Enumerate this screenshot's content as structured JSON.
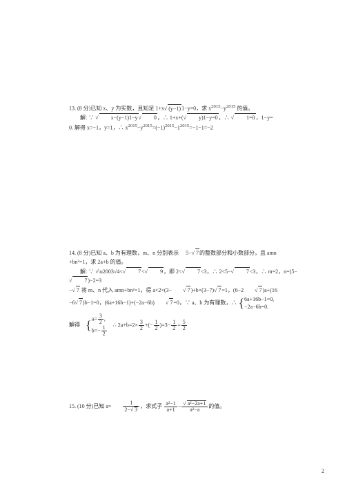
{
  "page_number": "2",
  "p13": {
    "header": "13. (8 分)已知 x、y 为实数，且知足 1+x",
    "h_rad1": "(y−1)",
    "h_mid": "1−y=0，",
    "h_rad2": "求 x",
    "h_sup": "2015",
    "h_tail": "−y",
    "h_tail_sup": "2015",
    "h_end": " 的值。",
    "sol_prefix": "解: ∵ ",
    "sol_rad1": "x−(y−1)1−y",
    "sol_rad2": "0",
    "sol_mid1": "，∴ 1+x+(",
    "sol_rad3": "y)1−y=0",
    "sol_mid2": "，∴ ",
    "sol_rad4": "1=0",
    "sol_mid3": "，1−y=",
    "sol_line2": "0. 解得 x=−1，y=1，∴ x",
    "sol_sup1": "2015",
    "sol_l2_mid": "−y",
    "sol_sup2": "2015",
    "sol_l2_mid2": "=(−1)",
    "sol_sup3": "2015",
    "sol_l2_mid3": "−1",
    "sol_sup4": "2015",
    "sol_l2_end": "=−1−1=−2"
  },
  "p14": {
    "header": "14. (8 分)已知 a、b 为有理数，m、n 分别表示  5−",
    "h_rad": "7",
    "h_tail": "的整数部分和小数部分，且 amn",
    "line2": "+bn²=1，求 2a+b 的值。",
    "sol_prefix": "解: ∵ ",
    "sol_r1": "4<",
    "sol_r1b": "7",
    "sol_r1c": "<",
    "sol_r1d": "9",
    "sol_r2": "，即 2<",
    "sol_r2b": "7",
    "sol_r2c": "<3，∴ 2<5−",
    "sol_r2d": "7",
    "sol_r2e": "<3，∴ m=2，n=(5−  ",
    "sol_r2f": "7",
    "sol_r2g": ")−2=3",
    "sol_l2a": "−",
    "sol_l2rad": "7",
    "sol_l2b": " 将 m、n 代入 amn+bn²=1，得 a×2×(3−  ",
    "sol_l2c": "7",
    "sol_l2d": ")+b×(3−7)",
    "sol_l2e": "7",
    "sol_l2f": "=1，(6−2  ",
    "sol_l2g": "7",
    "sol_l2h": ")a+(16",
    "sol_l3a": "−6",
    "sol_l3b": "7",
    "sol_l3c": ")b−1=0，(6a+16b−1)+(−2a−6b)  ",
    "sol_l3d": "7",
    "sol_l3e": "=0，∵ a、b 为有理数，∴",
    "brace1_top": "6a+16b−1=0,",
    "brace1_bot": "−2a−6b=0.",
    "final_prefix": "解得",
    "brace2_a_label": "a=",
    "brace2_a_num": "3",
    "brace2_a_den": "2",
    "brace2_a_tail": ",",
    "brace2_b_label": "b=−",
    "brace2_b_num": "1",
    "brace2_b_den": "2",
    "final_expr1": "∴ 2a+b=2×",
    "final_f1_num": "3",
    "final_f1_den": "2",
    "final_expr2": "+(−",
    "final_f2_num": "1",
    "final_f2_den": "2",
    "final_expr3": ")=3−",
    "final_f3_num": "1",
    "final_f3_den": "2",
    "final_expr4": "=",
    "final_f4_num": "5",
    "final_f4_den": "2"
  },
  "p15": {
    "header": "15. (10 分)已知 a=  ",
    "f1_num": "1",
    "f1_den_pre": "2−",
    "f1_den_rad": "3",
    "mid": "，求式子",
    "f2_num": "a²−1",
    "f2_den": "a+1",
    "mid2": "−",
    "f3_num_rad": "a²−2a+1",
    "f3_den": "a²−a",
    "tail": "的值。"
  }
}
